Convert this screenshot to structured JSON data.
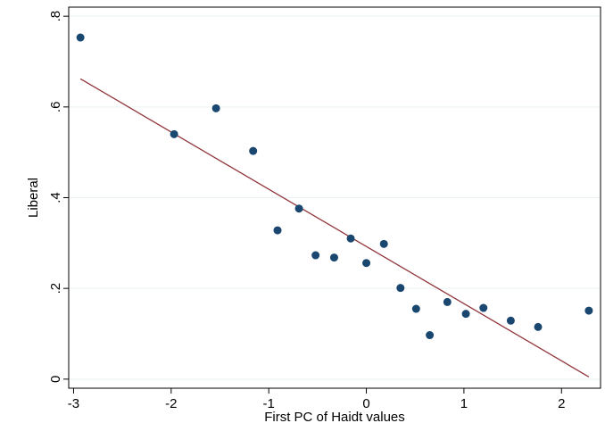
{
  "chart_data": {
    "type": "scatter",
    "xlabel": "First PC of Haidt values",
    "ylabel": "Liberal",
    "xlim": [
      -3.05,
      2.4
    ],
    "ylim": [
      -0.02,
      0.82
    ],
    "x_ticks": [
      -3,
      -2,
      -1,
      0,
      1,
      2
    ],
    "x_tick_labels": [
      "-3",
      "-2",
      "-1",
      "0",
      "1",
      "2"
    ],
    "y_ticks": [
      0,
      0.2,
      0.4,
      0.6,
      0.8
    ],
    "y_tick_labels": [
      "0",
      ".2",
      ".4",
      ".6",
      ".8"
    ],
    "grid": "horizontal",
    "marker_color": "#1a476f",
    "fit_color": "#90353b",
    "points": [
      {
        "x": -2.93,
        "y": 0.753
      },
      {
        "x": -1.97,
        "y": 0.54
      },
      {
        "x": -1.54,
        "y": 0.597
      },
      {
        "x": -1.16,
        "y": 0.503
      },
      {
        "x": -0.91,
        "y": 0.328
      },
      {
        "x": -0.69,
        "y": 0.376
      },
      {
        "x": -0.52,
        "y": 0.273
      },
      {
        "x": -0.33,
        "y": 0.268
      },
      {
        "x": -0.16,
        "y": 0.31
      },
      {
        "x": 0.0,
        "y": 0.256
      },
      {
        "x": 0.18,
        "y": 0.298
      },
      {
        "x": 0.35,
        "y": 0.201
      },
      {
        "x": 0.51,
        "y": 0.155
      },
      {
        "x": 0.65,
        "y": 0.097
      },
      {
        "x": 0.83,
        "y": 0.17
      },
      {
        "x": 1.02,
        "y": 0.144
      },
      {
        "x": 1.2,
        "y": 0.157
      },
      {
        "x": 1.48,
        "y": 0.129
      },
      {
        "x": 1.76,
        "y": 0.115
      },
      {
        "x": 2.28,
        "y": 0.151
      }
    ],
    "fit_line": {
      "x": [
        -2.93,
        2.28
      ],
      "y": [
        0.662,
        0.005
      ]
    }
  }
}
